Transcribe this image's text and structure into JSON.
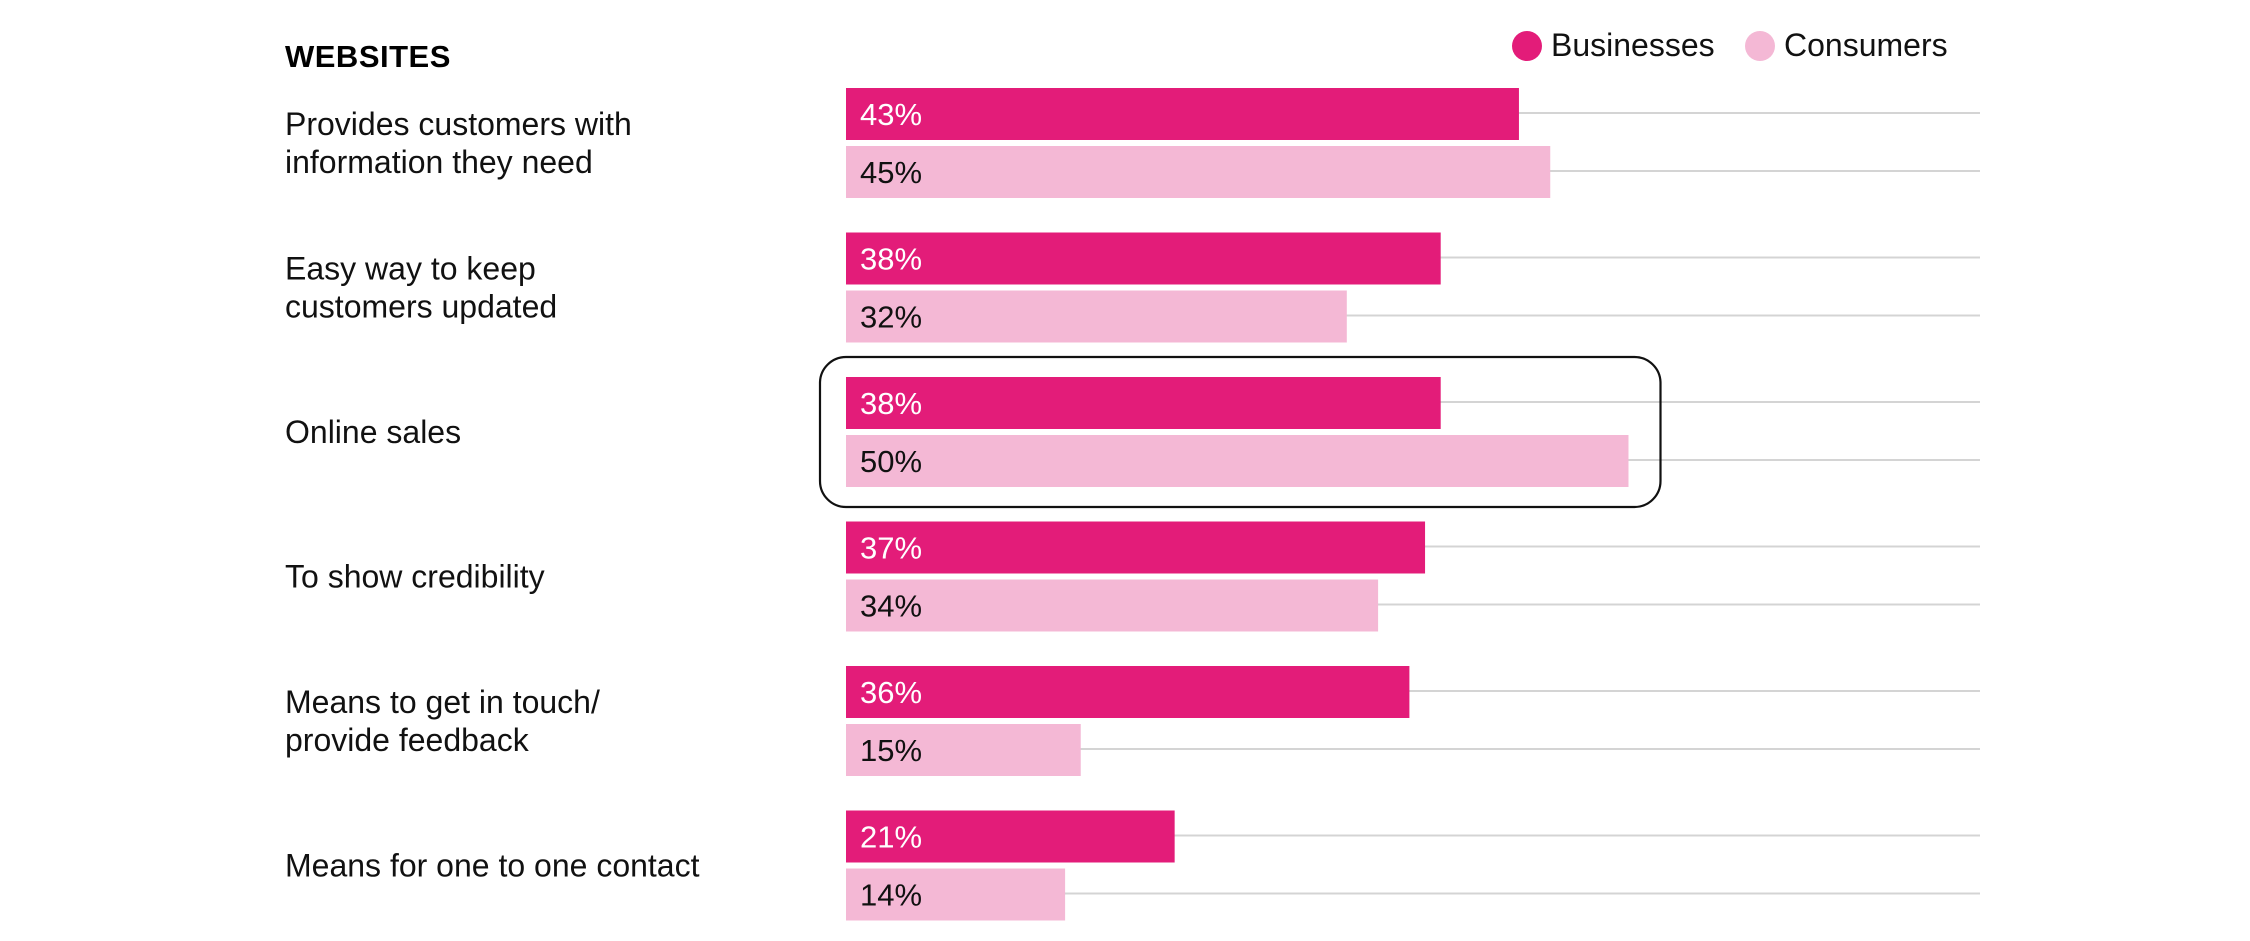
{
  "chart_data": {
    "type": "bar",
    "orientation": "horizontal",
    "title": "WEBSITES",
    "categories": [
      [
        "Provides customers with",
        "information they need"
      ],
      [
        "Easy way to keep",
        "customers updated"
      ],
      [
        "Online sales"
      ],
      [
        "To show credibility"
      ],
      [
        "Means to get in touch/",
        "provide feedback"
      ],
      [
        "Means for one to one contact"
      ]
    ],
    "series": [
      {
        "name": "Businesses",
        "color": "#e31c79",
        "label_color": "#ffffff",
        "values": [
          43,
          38,
          38,
          37,
          36,
          21
        ],
        "labels": [
          "43%",
          "38%",
          "38%",
          "37%",
          "36%",
          "21%"
        ]
      },
      {
        "name": "Consumers",
        "color": "#f4b8d5",
        "label_color": "#111111",
        "values": [
          45,
          32,
          50,
          34,
          15,
          14
        ],
        "labels": [
          "45%",
          "32%",
          "50%",
          "34%",
          "15%",
          "14%"
        ]
      }
    ],
    "xlim": [
      0,
      100
    ],
    "unit": "%",
    "grid": true,
    "legend_position": "top-right",
    "highlighted_category": "Online sales"
  }
}
